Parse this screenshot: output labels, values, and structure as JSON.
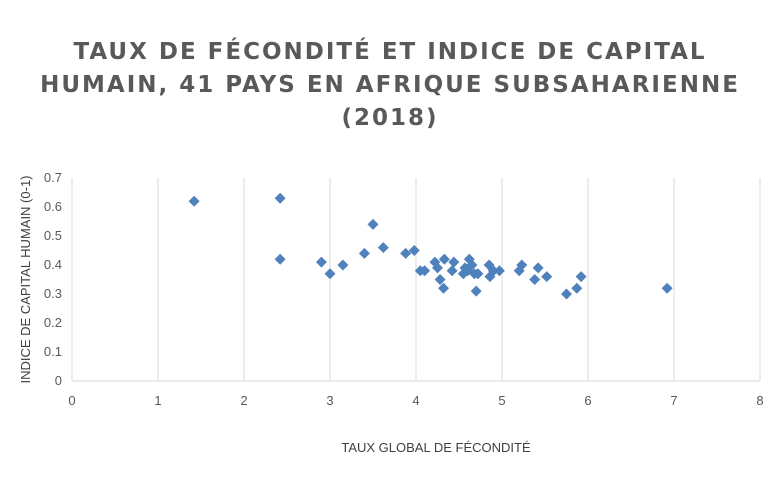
{
  "chart_data": {
    "type": "scatter",
    "title_lines": [
      "TAUX DE FÉCONDITÉ ET INDICE DE CAPITAL",
      "HUMAIN, 41 PAYS EN AFRIQUE SUBSAHARIENNE",
      "(2018)"
    ],
    "xlabel": "TAUX GLOBAL DE FÉCONDITÉ",
    "ylabel": "INDICE DE CAPITAL HUMAIN (0-1)",
    "xlim": [
      0,
      8
    ],
    "ylim": [
      0,
      0.7
    ],
    "xticks": [
      "0",
      "1",
      "2",
      "3",
      "4",
      "5",
      "6",
      "7",
      "8"
    ],
    "yticks": [
      "0",
      "0.1",
      "0.2",
      "0.3",
      "0.4",
      "0.5",
      "0.6",
      "0.7"
    ],
    "grid": "vertical",
    "legend": "none",
    "marker": "diamond",
    "color": "#4f81bd",
    "series": [
      {
        "points": [
          [
            1.42,
            0.62
          ],
          [
            2.42,
            0.63
          ],
          [
            2.42,
            0.42
          ],
          [
            2.9,
            0.41
          ],
          [
            3.0,
            0.37
          ],
          [
            3.15,
            0.4
          ],
          [
            3.4,
            0.44
          ],
          [
            3.5,
            0.54
          ],
          [
            3.62,
            0.46
          ],
          [
            3.88,
            0.44
          ],
          [
            3.98,
            0.45
          ],
          [
            4.05,
            0.38
          ],
          [
            4.1,
            0.38
          ],
          [
            4.22,
            0.41
          ],
          [
            4.25,
            0.39
          ],
          [
            4.28,
            0.35
          ],
          [
            4.32,
            0.32
          ],
          [
            4.33,
            0.42
          ],
          [
            4.42,
            0.38
          ],
          [
            4.44,
            0.41
          ],
          [
            4.55,
            0.37
          ],
          [
            4.57,
            0.39
          ],
          [
            4.6,
            0.38
          ],
          [
            4.62,
            0.42
          ],
          [
            4.65,
            0.4
          ],
          [
            4.68,
            0.37
          ],
          [
            4.7,
            0.31
          ],
          [
            4.72,
            0.37
          ],
          [
            4.85,
            0.4
          ],
          [
            4.86,
            0.36
          ],
          [
            4.9,
            0.38
          ],
          [
            4.97,
            0.38
          ],
          [
            5.2,
            0.38
          ],
          [
            5.23,
            0.4
          ],
          [
            5.38,
            0.35
          ],
          [
            5.42,
            0.39
          ],
          [
            5.52,
            0.36
          ],
          [
            5.75,
            0.3
          ],
          [
            5.87,
            0.32
          ],
          [
            5.92,
            0.36
          ],
          [
            6.92,
            0.32
          ]
        ]
      }
    ]
  }
}
